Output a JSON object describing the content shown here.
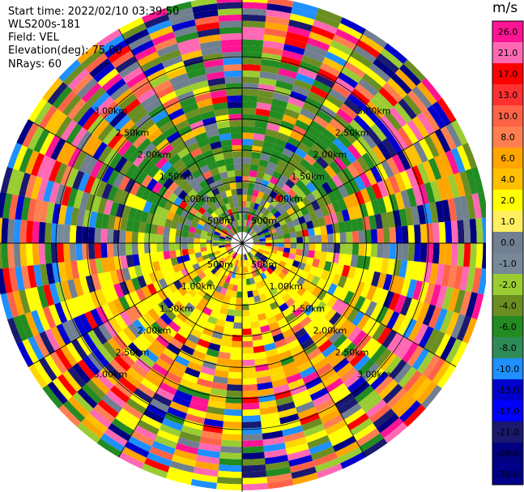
{
  "info": {
    "start_time": "Start time: 2022/02/10 03:39:50",
    "device": "WLS200s-181",
    "field": "Field: VEL",
    "elevation": "Elevation(deg): 75.00",
    "nrays": "NRays: 60"
  },
  "colorbar": {
    "unit": "m/s",
    "ticks": [
      "26.0",
      "21.0",
      "17.0",
      "13.0",
      "10.0",
      "8.0",
      "6.0",
      "4.0",
      "2.0",
      "1.0",
      "0.0",
      "-1.0",
      "-2.0",
      "-4.0",
      "-6.0",
      "-8.0",
      "-10.0",
      "-13.0",
      "-17.0",
      "-21.0",
      "-26.0",
      "-30.0"
    ],
    "colors": [
      "#ff1493",
      "#ff69b4",
      "#ff0000",
      "#ff3030",
      "#ff6347",
      "#ff7f50",
      "#ffa500",
      "#ffc000",
      "#ffff00",
      "#ffee60",
      "#708090",
      "#778899",
      "#9acd32",
      "#6b8e23",
      "#228b22",
      "#2e8b57",
      "#1e90ff",
      "#0000cd",
      "#0000ff",
      "#191970",
      "#000080",
      "#00008b"
    ]
  },
  "chart_data": {
    "type": "polar-ppi",
    "field": "VEL",
    "units": "m/s",
    "nrays": 60,
    "range_rings_km": [
      0.5,
      1.0,
      1.5,
      2.0,
      2.5,
      3.0
    ],
    "range_labels": [
      "500m",
      "1.00km",
      "1.50km",
      "2.00km",
      "2.50km",
      "3.00km"
    ],
    "vmin": -30,
    "vmax": 30,
    "pattern": "dipole: positive (toward yellow/orange) in south sector, negative (grey/green) in north sector, noisy mixed values at far ranges"
  }
}
